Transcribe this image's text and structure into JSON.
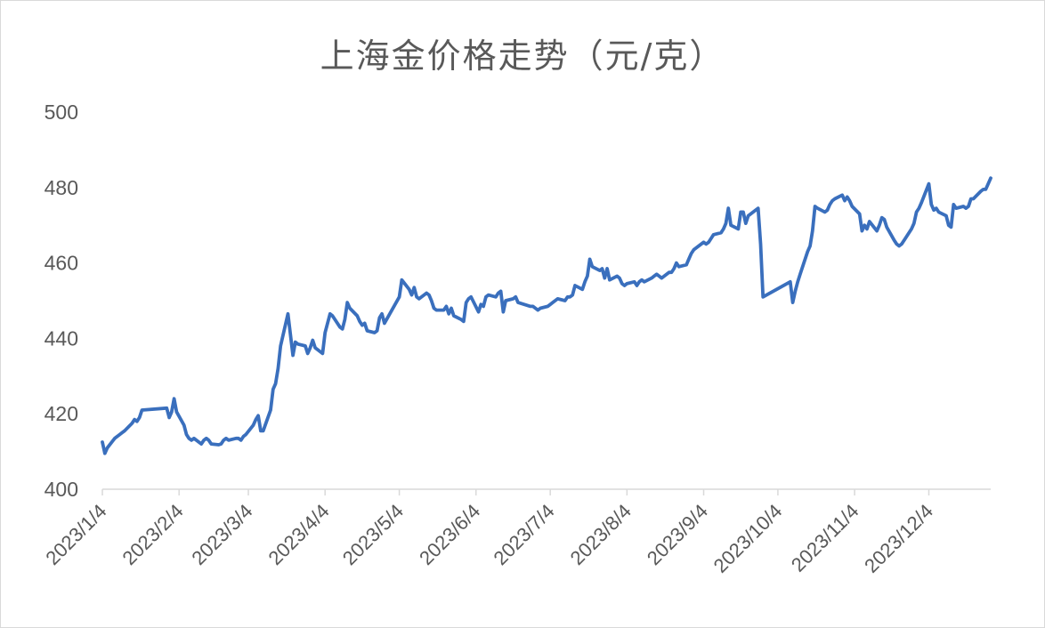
{
  "chart_data": {
    "type": "line",
    "title": "上海金价格走势（元/克）",
    "xlabel": "",
    "ylabel": "",
    "ylim": [
      400,
      500
    ],
    "yticks": [
      400,
      420,
      440,
      460,
      480,
      500
    ],
    "xticks": [
      "2023/1/4",
      "2023/2/4",
      "2023/3/4",
      "2023/4/4",
      "2023/5/4",
      "2023/6/4",
      "2023/7/4",
      "2023/8/4",
      "2023/9/4",
      "2023/10/4",
      "2023/11/4",
      "2023/12/4"
    ],
    "grid": false,
    "legend": "none",
    "line_color": "#3a6fbd",
    "series": [
      {
        "values": [
          [
            "2023-01-04",
            412.5
          ],
          [
            "2023-01-05",
            409.5
          ],
          [
            "2023-01-06",
            411.0
          ],
          [
            "2023-01-09",
            413.5
          ],
          [
            "2023-01-10",
            414.0
          ],
          [
            "2023-01-11",
            414.5
          ],
          [
            "2023-01-12",
            415.0
          ],
          [
            "2023-01-13",
            415.5
          ],
          [
            "2023-01-16",
            417.5
          ],
          [
            "2023-01-17",
            418.5
          ],
          [
            "2023-01-18",
            418.0
          ],
          [
            "2023-01-19",
            419.0
          ],
          [
            "2023-01-20",
            421.0
          ],
          [
            "2023-01-30",
            421.5
          ],
          [
            "2023-01-31",
            419.0
          ],
          [
            "2023-02-01",
            420.5
          ],
          [
            "2023-02-02",
            424.0
          ],
          [
            "2023-02-03",
            420.5
          ],
          [
            "2023-02-06",
            417.0
          ],
          [
            "2023-02-07",
            414.5
          ],
          [
            "2023-02-08",
            413.5
          ],
          [
            "2023-02-09",
            413.0
          ],
          [
            "2023-02-10",
            413.5
          ],
          [
            "2023-02-13",
            412.0
          ],
          [
            "2023-02-14",
            413.0
          ],
          [
            "2023-02-15",
            413.5
          ],
          [
            "2023-02-16",
            413.0
          ],
          [
            "2023-02-17",
            412.0
          ],
          [
            "2023-02-20",
            411.8
          ],
          [
            "2023-02-21",
            412.0
          ],
          [
            "2023-02-22",
            413.0
          ],
          [
            "2023-02-23",
            413.5
          ],
          [
            "2023-02-24",
            413.0
          ],
          [
            "2023-02-27",
            413.5
          ],
          [
            "2023-02-28",
            413.5
          ],
          [
            "2023-03-01",
            413.0
          ],
          [
            "2023-03-02",
            414.0
          ],
          [
            "2023-03-03",
            414.5
          ],
          [
            "2023-03-06",
            417.0
          ],
          [
            "2023-03-07",
            418.5
          ],
          [
            "2023-03-08",
            419.5
          ],
          [
            "2023-03-09",
            415.5
          ],
          [
            "2023-03-10",
            415.5
          ],
          [
            "2023-03-13",
            421.0
          ],
          [
            "2023-03-14",
            426.5
          ],
          [
            "2023-03-15",
            428.0
          ],
          [
            "2023-03-16",
            432.0
          ],
          [
            "2023-03-17",
            438.0
          ],
          [
            "2023-03-20",
            446.5
          ],
          [
            "2023-03-21",
            441.0
          ],
          [
            "2023-03-22",
            435.5
          ],
          [
            "2023-03-23",
            439.0
          ],
          [
            "2023-03-24",
            438.5
          ],
          [
            "2023-03-27",
            438.0
          ],
          [
            "2023-03-28",
            436.0
          ],
          [
            "2023-03-29",
            437.5
          ],
          [
            "2023-03-30",
            439.5
          ],
          [
            "2023-03-31",
            437.5
          ],
          [
            "2023-04-03",
            436.0
          ],
          [
            "2023-04-04",
            441.5
          ],
          [
            "2023-04-06",
            446.5
          ],
          [
            "2023-04-07",
            446.0
          ],
          [
            "2023-04-10",
            443.0
          ],
          [
            "2023-04-11",
            442.5
          ],
          [
            "2023-04-12",
            445.0
          ],
          [
            "2023-04-13",
            449.5
          ],
          [
            "2023-04-14",
            448.0
          ],
          [
            "2023-04-17",
            446.0
          ],
          [
            "2023-04-18",
            444.5
          ],
          [
            "2023-04-19",
            443.5
          ],
          [
            "2023-04-20",
            444.0
          ],
          [
            "2023-04-21",
            442.0
          ],
          [
            "2023-04-24",
            441.5
          ],
          [
            "2023-04-25",
            442.0
          ],
          [
            "2023-04-26",
            445.5
          ],
          [
            "2023-04-27",
            446.5
          ],
          [
            "2023-04-28",
            444.0
          ],
          [
            "2023-05-04",
            451.0
          ],
          [
            "2023-05-05",
            455.5
          ],
          [
            "2023-05-08",
            453.0
          ],
          [
            "2023-05-09",
            451.5
          ],
          [
            "2023-05-10",
            453.5
          ],
          [
            "2023-05-11",
            451.0
          ],
          [
            "2023-05-12",
            450.5
          ],
          [
            "2023-05-15",
            452.0
          ],
          [
            "2023-05-16",
            451.5
          ],
          [
            "2023-05-17",
            450.0
          ],
          [
            "2023-05-18",
            448.0
          ],
          [
            "2023-05-19",
            447.5
          ],
          [
            "2023-05-22",
            447.5
          ],
          [
            "2023-05-23",
            448.5
          ],
          [
            "2023-05-24",
            446.5
          ],
          [
            "2023-05-25",
            448.0
          ],
          [
            "2023-05-26",
            446.0
          ],
          [
            "2023-05-29",
            445.0
          ],
          [
            "2023-05-30",
            444.5
          ],
          [
            "2023-05-31",
            449.5
          ],
          [
            "2023-06-01",
            450.5
          ],
          [
            "2023-06-02",
            451.0
          ],
          [
            "2023-06-05",
            447.0
          ],
          [
            "2023-06-06",
            449.0
          ],
          [
            "2023-06-07",
            448.5
          ],
          [
            "2023-06-08",
            451.0
          ],
          [
            "2023-06-09",
            451.5
          ],
          [
            "2023-06-12",
            451.0
          ],
          [
            "2023-06-13",
            452.0
          ],
          [
            "2023-06-14",
            452.5
          ],
          [
            "2023-06-15",
            447.0
          ],
          [
            "2023-06-16",
            450.0
          ],
          [
            "2023-06-19",
            450.5
          ],
          [
            "2023-06-20",
            451.0
          ],
          [
            "2023-06-21",
            449.5
          ],
          [
            "2023-06-26",
            448.5
          ],
          [
            "2023-06-27",
            448.5
          ],
          [
            "2023-06-28",
            448.0
          ],
          [
            "2023-06-29",
            447.5
          ],
          [
            "2023-06-30",
            448.0
          ],
          [
            "2023-07-03",
            448.5
          ],
          [
            "2023-07-04",
            449.0
          ],
          [
            "2023-07-05",
            449.5
          ],
          [
            "2023-07-06",
            450.0
          ],
          [
            "2023-07-07",
            450.5
          ],
          [
            "2023-07-10",
            450.0
          ],
          [
            "2023-07-11",
            451.0
          ],
          [
            "2023-07-12",
            451.0
          ],
          [
            "2023-07-13",
            451.5
          ],
          [
            "2023-07-14",
            454.0
          ],
          [
            "2023-07-17",
            453.0
          ],
          [
            "2023-07-18",
            455.0
          ],
          [
            "2023-07-19",
            456.5
          ],
          [
            "2023-07-20",
            461.0
          ],
          [
            "2023-07-21",
            459.0
          ],
          [
            "2023-07-24",
            458.0
          ],
          [
            "2023-07-25",
            458.5
          ],
          [
            "2023-07-26",
            456.0
          ],
          [
            "2023-07-27",
            458.5
          ],
          [
            "2023-07-28",
            455.5
          ],
          [
            "2023-07-31",
            456.5
          ],
          [
            "2023-08-01",
            456.0
          ],
          [
            "2023-08-02",
            454.5
          ],
          [
            "2023-08-03",
            454.0
          ],
          [
            "2023-08-04",
            454.5
          ],
          [
            "2023-08-07",
            455.0
          ],
          [
            "2023-08-08",
            454.0
          ],
          [
            "2023-08-09",
            455.0
          ],
          [
            "2023-08-10",
            455.5
          ],
          [
            "2023-08-11",
            455.0
          ],
          [
            "2023-08-14",
            456.0
          ],
          [
            "2023-08-15",
            456.5
          ],
          [
            "2023-08-16",
            457.0
          ],
          [
            "2023-08-17",
            456.5
          ],
          [
            "2023-08-18",
            456.0
          ],
          [
            "2023-08-21",
            457.5
          ],
          [
            "2023-08-22",
            457.5
          ],
          [
            "2023-08-23",
            458.5
          ],
          [
            "2023-08-24",
            460.0
          ],
          [
            "2023-08-25",
            459.0
          ],
          [
            "2023-08-28",
            459.5
          ],
          [
            "2023-08-29",
            461.0
          ],
          [
            "2023-08-30",
            462.5
          ],
          [
            "2023-08-31",
            463.5
          ],
          [
            "2023-09-01",
            464.0
          ],
          [
            "2023-09-04",
            465.5
          ],
          [
            "2023-09-05",
            465.0
          ],
          [
            "2023-09-06",
            465.5
          ],
          [
            "2023-09-07",
            466.5
          ],
          [
            "2023-09-08",
            467.5
          ],
          [
            "2023-09-11",
            468.0
          ],
          [
            "2023-09-12",
            469.0
          ],
          [
            "2023-09-13",
            470.5
          ],
          [
            "2023-09-14",
            474.5
          ],
          [
            "2023-09-15",
            470.0
          ],
          [
            "2023-09-18",
            469.0
          ],
          [
            "2023-09-19",
            473.5
          ],
          [
            "2023-09-20",
            473.5
          ],
          [
            "2023-09-21",
            470.5
          ],
          [
            "2023-09-22",
            472.5
          ],
          [
            "2023-09-25",
            474.0
          ],
          [
            "2023-09-26",
            474.5
          ],
          [
            "2023-09-27",
            465.0
          ],
          [
            "2023-09-28",
            451.0
          ],
          [
            "2023-10-09",
            455.0
          ],
          [
            "2023-10-10",
            449.5
          ],
          [
            "2023-10-11",
            452.5
          ],
          [
            "2023-10-12",
            455.0
          ],
          [
            "2023-10-13",
            457.0
          ],
          [
            "2023-10-16",
            463.0
          ],
          [
            "2023-10-17",
            464.5
          ],
          [
            "2023-10-18",
            468.5
          ],
          [
            "2023-10-19",
            475.0
          ],
          [
            "2023-10-20",
            474.5
          ],
          [
            "2023-10-23",
            473.5
          ],
          [
            "2023-10-24",
            474.0
          ],
          [
            "2023-10-25",
            475.5
          ],
          [
            "2023-10-26",
            476.5
          ],
          [
            "2023-10-27",
            477.0
          ],
          [
            "2023-10-30",
            478.0
          ],
          [
            "2023-10-31",
            476.5
          ],
          [
            "2023-11-01",
            477.5
          ],
          [
            "2023-11-02",
            476.5
          ],
          [
            "2023-11-03",
            475.0
          ],
          [
            "2023-11-06",
            473.0
          ],
          [
            "2023-11-07",
            468.5
          ],
          [
            "2023-11-08",
            470.0
          ],
          [
            "2023-11-09",
            469.0
          ],
          [
            "2023-11-10",
            471.0
          ],
          [
            "2023-11-13",
            468.5
          ],
          [
            "2023-11-14",
            470.0
          ],
          [
            "2023-11-15",
            472.0
          ],
          [
            "2023-11-16",
            471.5
          ],
          [
            "2023-11-17",
            469.5
          ],
          [
            "2023-11-20",
            466.0
          ],
          [
            "2023-11-21",
            465.0
          ],
          [
            "2023-11-22",
            464.5
          ],
          [
            "2023-11-23",
            465.0
          ],
          [
            "2023-11-24",
            466.0
          ],
          [
            "2023-11-27",
            469.0
          ],
          [
            "2023-11-28",
            470.5
          ],
          [
            "2023-11-29",
            473.5
          ],
          [
            "2023-11-30",
            474.5
          ],
          [
            "2023-12-01",
            476.0
          ],
          [
            "2023-12-04",
            481.0
          ],
          [
            "2023-12-05",
            475.5
          ],
          [
            "2023-12-06",
            474.0
          ],
          [
            "2023-12-07",
            474.5
          ],
          [
            "2023-12-08",
            473.5
          ],
          [
            "2023-12-11",
            472.5
          ],
          [
            "2023-12-12",
            470.0
          ],
          [
            "2023-12-13",
            469.5
          ],
          [
            "2023-12-14",
            475.5
          ],
          [
            "2023-12-15",
            474.5
          ],
          [
            "2023-12-18",
            475.0
          ],
          [
            "2023-12-19",
            474.5
          ],
          [
            "2023-12-20",
            475.0
          ],
          [
            "2023-12-21",
            477.0
          ],
          [
            "2023-12-22",
            477.0
          ],
          [
            "2023-12-25",
            479.0
          ],
          [
            "2023-12-26",
            479.5
          ],
          [
            "2023-12-27",
            479.5
          ],
          [
            "2023-12-28",
            481.0
          ],
          [
            "2023-12-29",
            482.5
          ]
        ]
      }
    ]
  }
}
